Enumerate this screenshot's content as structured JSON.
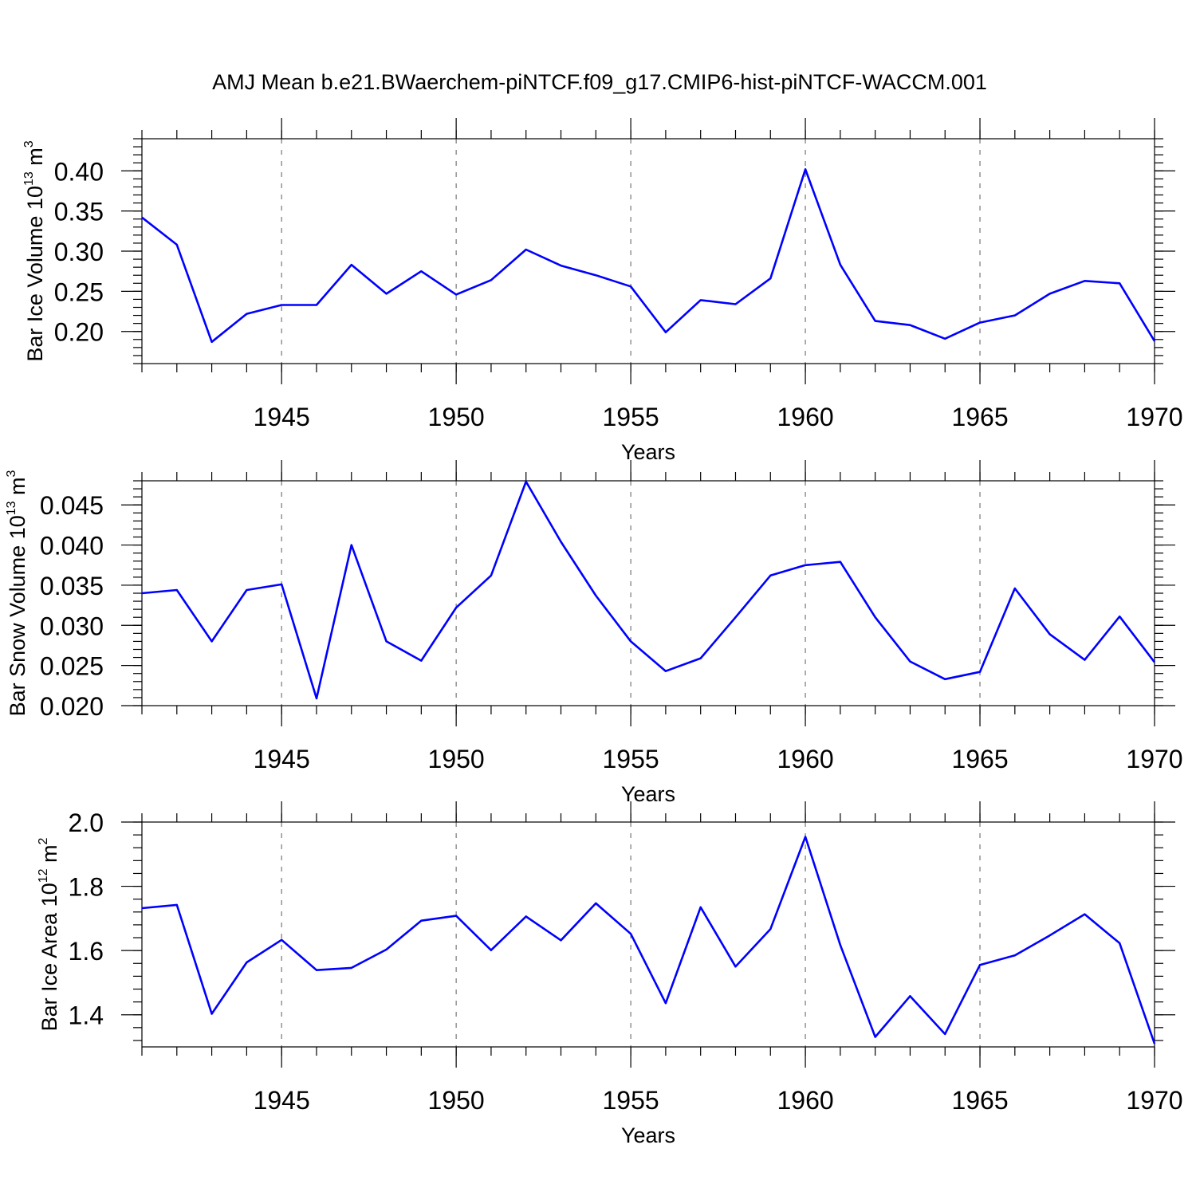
{
  "title": "AMJ Mean b.e21.BWaerchem-piNTCF.f09_g17.CMIP6-hist-piNTCF-WACCM.001",
  "colors": {
    "series": "#0000ff",
    "grid": "#777777",
    "axis": "#000000"
  },
  "chart_data": [
    {
      "type": "line",
      "xlabel": "Years",
      "ylabel": {
        "text": "Bar Ice Volume 10",
        "exponent": "13",
        "unit": " m",
        "unit_exponent": "3"
      },
      "xlim": [
        1941,
        1970
      ],
      "ylim": [
        0.16,
        0.44
      ],
      "xticks": [
        1945,
        1950,
        1955,
        1960,
        1965,
        1970
      ],
      "yticks": [
        "0.20",
        "0.25",
        "0.30",
        "0.35",
        "0.40"
      ],
      "grid": "vertical dashed at major x ticks",
      "x": [
        1941,
        1942,
        1943,
        1944,
        1945,
        1946,
        1947,
        1948,
        1949,
        1950,
        1951,
        1952,
        1953,
        1954,
        1955,
        1956,
        1957,
        1958,
        1959,
        1960,
        1961,
        1962,
        1963,
        1964,
        1965,
        1966,
        1967,
        1968,
        1969,
        1970
      ],
      "series": [
        {
          "values": [
            0.342,
            0.308,
            0.187,
            0.222,
            0.233,
            0.233,
            0.283,
            0.247,
            0.275,
            0.246,
            0.264,
            0.302,
            0.282,
            0.27,
            0.256,
            0.199,
            0.239,
            0.234,
            0.266,
            0.402,
            0.283,
            0.213,
            0.208,
            0.191,
            0.211,
            0.22,
            0.247,
            0.263,
            0.26,
            0.188
          ]
        }
      ]
    },
    {
      "type": "line",
      "xlabel": "Years",
      "ylabel": {
        "text": "Bar Snow Volume 10",
        "exponent": "13",
        "unit": " m",
        "unit_exponent": "3"
      },
      "xlim": [
        1941,
        1970
      ],
      "ylim": [
        0.02,
        0.048
      ],
      "xticks": [
        1945,
        1950,
        1955,
        1960,
        1965,
        1970
      ],
      "yticks": [
        "0.020",
        "0.025",
        "0.030",
        "0.035",
        "0.040",
        "0.045"
      ],
      "grid": "vertical dashed at major x ticks",
      "x": [
        1941,
        1942,
        1943,
        1944,
        1945,
        1946,
        1947,
        1948,
        1949,
        1950,
        1951,
        1952,
        1953,
        1954,
        1955,
        1956,
        1957,
        1958,
        1959,
        1960,
        1961,
        1962,
        1963,
        1964,
        1965,
        1966,
        1967,
        1968,
        1969,
        1970
      ],
      "series": [
        {
          "values": [
            0.034,
            0.0344,
            0.028,
            0.0344,
            0.0351,
            0.0209,
            0.04,
            0.028,
            0.0256,
            0.0322,
            0.0362,
            0.0479,
            0.0404,
            0.0337,
            0.028,
            0.0243,
            0.0259,
            0.031,
            0.0362,
            0.0375,
            0.0379,
            0.031,
            0.0255,
            0.0233,
            0.0242,
            0.0346,
            0.0289,
            0.0257,
            0.0311,
            0.0254
          ]
        }
      ]
    },
    {
      "type": "line",
      "xlabel": "Years",
      "ylabel": {
        "text": "Bar Ice Area 10",
        "exponent": "12",
        "unit": " m",
        "unit_exponent": "2"
      },
      "xlim": [
        1941,
        1970
      ],
      "ylim": [
        1.3,
        2.0
      ],
      "xticks": [
        1945,
        1950,
        1955,
        1960,
        1965,
        1970
      ],
      "yticks": [
        "1.4",
        "1.6",
        "1.8",
        "2.0"
      ],
      "grid": "vertical dashed at major x ticks",
      "x": [
        1941,
        1942,
        1943,
        1944,
        1945,
        1946,
        1947,
        1948,
        1949,
        1950,
        1951,
        1952,
        1953,
        1954,
        1955,
        1956,
        1957,
        1958,
        1959,
        1960,
        1961,
        1962,
        1963,
        1964,
        1965,
        1966,
        1967,
        1968,
        1969,
        1970
      ],
      "series": [
        {
          "values": [
            1.732,
            1.742,
            1.403,
            1.563,
            1.633,
            1.539,
            1.546,
            1.603,
            1.693,
            1.708,
            1.601,
            1.706,
            1.632,
            1.747,
            1.652,
            1.436,
            1.735,
            1.55,
            1.667,
            1.954,
            1.617,
            1.331,
            1.458,
            1.34,
            1.555,
            1.585,
            1.647,
            1.713,
            1.623,
            1.31
          ]
        }
      ]
    }
  ]
}
